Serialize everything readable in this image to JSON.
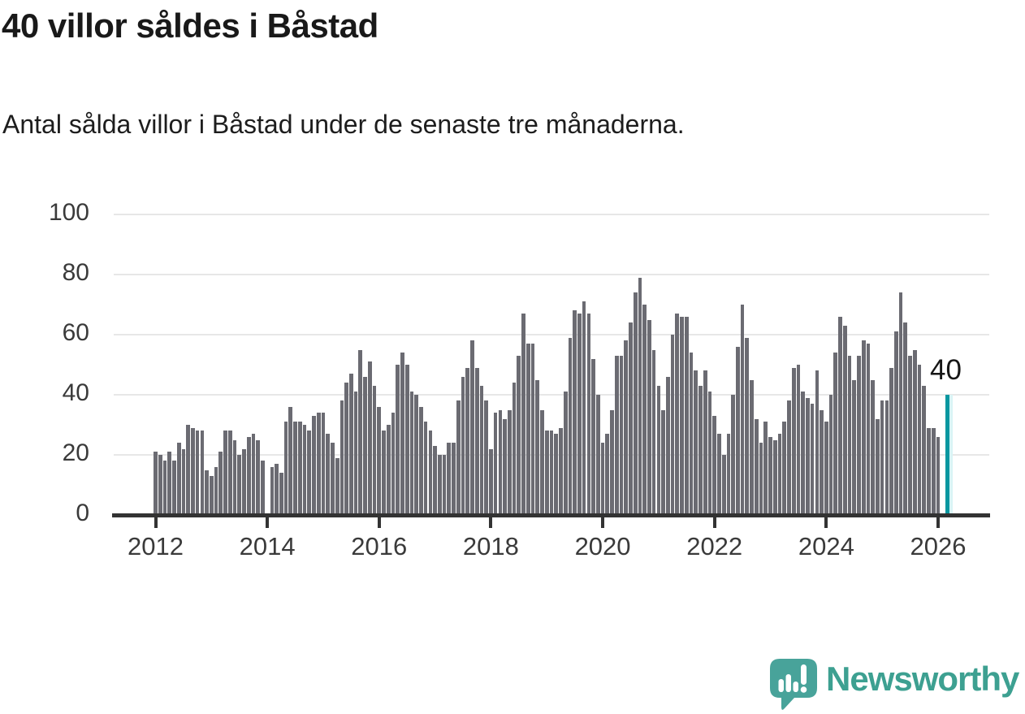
{
  "header": {
    "title": "40 villor såldes i Båstad",
    "subtitle": "Antal sålda villor i Båstad under de senaste tre månaderna."
  },
  "chart_data": {
    "type": "bar",
    "title": "40 villor såldes i Båstad",
    "subtitle": "Antal sålda villor i Båstad under de senaste tre månaderna.",
    "xlabel": "",
    "ylabel": "",
    "ylim": [
      0,
      100
    ],
    "y_ticks": [
      0,
      20,
      40,
      60,
      80,
      100
    ],
    "x_tick_labels": [
      "2012",
      "2014",
      "2016",
      "2018",
      "2020",
      "2022",
      "2024",
      "2026"
    ],
    "grid": true,
    "x_start": "2012-01",
    "x_interval": "month",
    "values": [
      21,
      20,
      18,
      21,
      18,
      24,
      22,
      30,
      29,
      28,
      28,
      15,
      13,
      16,
      21,
      28,
      28,
      25,
      20,
      22,
      26,
      27,
      25,
      18,
      0,
      16,
      17,
      14,
      31,
      36,
      31,
      31,
      30,
      28,
      33,
      34,
      34,
      27,
      24,
      19,
      38,
      44,
      47,
      41,
      55,
      46,
      51,
      43,
      36,
      28,
      30,
      34,
      50,
      54,
      50,
      41,
      40,
      36,
      31,
      28,
      23,
      20,
      20,
      24,
      24,
      38,
      46,
      49,
      58,
      49,
      43,
      38,
      22,
      34,
      35,
      32,
      35,
      44,
      53,
      67,
      57,
      57,
      45,
      35,
      28,
      28,
      27,
      29,
      41,
      59,
      68,
      67,
      71,
      67,
      52,
      40,
      24,
      27,
      35,
      53,
      53,
      58,
      64,
      74,
      79,
      70,
      65,
      55,
      43,
      35,
      46,
      60,
      67,
      66,
      66,
      54,
      48,
      43,
      48,
      41,
      33,
      27,
      20,
      27,
      40,
      56,
      70,
      59,
      45,
      32,
      24,
      31,
      26,
      25,
      27,
      31,
      38,
      49,
      50,
      41,
      39,
      37,
      48,
      35,
      31,
      40,
      54,
      66,
      63,
      53,
      45,
      53,
      58,
      57,
      45,
      32,
      38,
      38,
      49,
      61,
      74,
      64,
      53,
      55,
      50,
      43,
      29,
      29,
      26,
      0,
      40
    ],
    "highlight_index": 170,
    "highlight_value": 40,
    "annotation_label": "40",
    "colors": {
      "bar": "#6b6b72",
      "highlight_bar": "#0897a0",
      "highlight_glow": "#d9f4f5",
      "gridline": "#e7e7e7",
      "axis": "#333333",
      "tick_label": "#3a3a3a",
      "title_text": "#191919"
    }
  },
  "footer": {
    "brand": "Newsworthy",
    "brand_color": "#3da091",
    "logo_icon": "newsworthy-speech-bubble-chart-icon",
    "logo_bubble_color": "#48a39a"
  }
}
